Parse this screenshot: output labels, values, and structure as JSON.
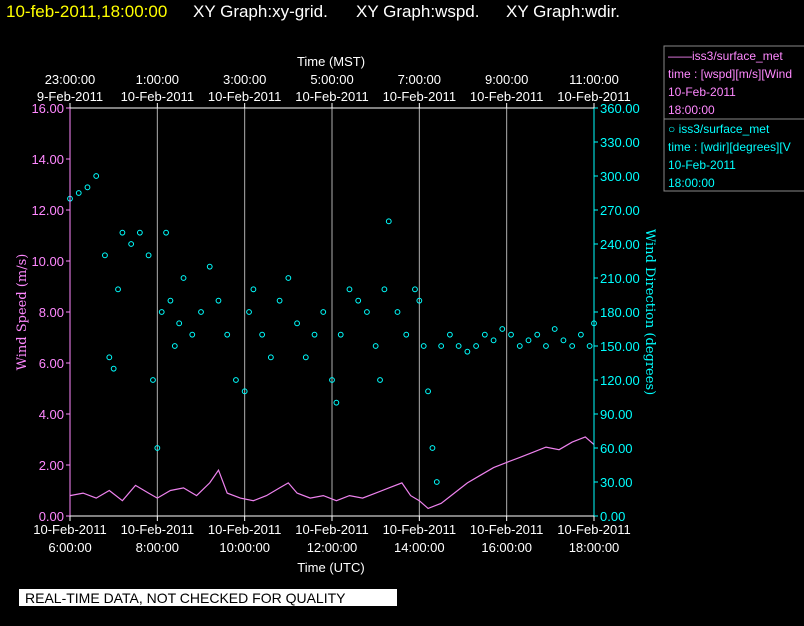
{
  "header": {
    "date_label": "10-feb-2011,18:00:00",
    "titles": [
      "XY Graph:xy-grid.",
      "XY Graph:wspd.",
      "XY Graph:wdir."
    ]
  },
  "footer": {
    "notice": "REAL-TIME DATA, NOT CHECKED FOR QUALITY"
  },
  "legend": [
    {
      "lines": [
        "——iss3/surface_met",
        "time : [wspd][m/s][Wind",
        "10-Feb-2011",
        "18:00:00"
      ],
      "color": "#ff88ff"
    },
    {
      "lines": [
        "○  iss3/surface_met",
        "time : [wdir][degrees][V",
        "10-Feb-2011",
        "18:00:00"
      ],
      "color": "#00ffff"
    }
  ],
  "colors": {
    "wspd": "#ee82ee",
    "wdir": "#00ffff",
    "axis_left": "#ff88ff",
    "axis_right": "#00ffff",
    "grid": "#b0b0b0",
    "background": "#000000"
  },
  "chart_data": {
    "type": "line",
    "title": "",
    "xlabel_bottom": "Time (UTC)",
    "xlabel_top": "Time (MST)",
    "ylabel_left": "Wind Speed (m/s)",
    "ylabel_right": "Wind Direction (degrees)",
    "xlim_utc_hours": [
      6,
      18
    ],
    "x_ticks_bottom": [
      {
        "h": 6,
        "date": "10-Feb-2011",
        "time": "6:00:00"
      },
      {
        "h": 8,
        "date": "10-Feb-2011",
        "time": "8:00:00"
      },
      {
        "h": 10,
        "date": "10-Feb-2011",
        "time": "10:00:00"
      },
      {
        "h": 12,
        "date": "10-Feb-2011",
        "time": "12:00:00"
      },
      {
        "h": 14,
        "date": "10-Feb-2011",
        "time": "14:00:00"
      },
      {
        "h": 16,
        "date": "10-Feb-2011",
        "time": "16:00:00"
      },
      {
        "h": 18,
        "date": "10-Feb-2011",
        "time": "18:00:00"
      }
    ],
    "x_ticks_top": [
      {
        "h": 6,
        "time": "23:00:00",
        "date": "9-Feb-2011"
      },
      {
        "h": 8,
        "time": "1:00:00",
        "date": "10-Feb-2011"
      },
      {
        "h": 10,
        "time": "3:00:00",
        "date": "10-Feb-2011"
      },
      {
        "h": 12,
        "time": "5:00:00",
        "date": "10-Feb-2011"
      },
      {
        "h": 14,
        "time": "7:00:00",
        "date": "10-Feb-2011"
      },
      {
        "h": 16,
        "time": "9:00:00",
        "date": "10-Feb-2011"
      },
      {
        "h": 18,
        "time": "11:00:00",
        "date": "10-Feb-2011"
      }
    ],
    "ylim_left": [
      0,
      16
    ],
    "y_ticks_left": [
      "0.00",
      "2.00",
      "4.00",
      "6.00",
      "8.00",
      "10.00",
      "12.00",
      "14.00",
      "16.00"
    ],
    "ylim_right": [
      0,
      360
    ],
    "y_ticks_right": [
      "0.00",
      "30.00",
      "60.00",
      "90.00",
      "120.00",
      "150.00",
      "180.00",
      "210.00",
      "240.00",
      "270.00",
      "300.00",
      "330.00",
      "360.00"
    ],
    "grid_h": [
      8,
      10,
      12,
      14,
      16
    ],
    "series": [
      {
        "name": "iss3/surface_met wspd",
        "style": "line",
        "axis": "left",
        "points": [
          [
            6.0,
            0.8
          ],
          [
            6.3,
            0.9
          ],
          [
            6.6,
            0.7
          ],
          [
            6.9,
            1.0
          ],
          [
            7.2,
            0.6
          ],
          [
            7.5,
            1.2
          ],
          [
            7.8,
            0.9
          ],
          [
            8.0,
            0.7
          ],
          [
            8.3,
            1.0
          ],
          [
            8.6,
            1.1
          ],
          [
            8.9,
            0.8
          ],
          [
            9.2,
            1.3
          ],
          [
            9.4,
            1.8
          ],
          [
            9.6,
            0.9
          ],
          [
            9.9,
            0.7
          ],
          [
            10.2,
            0.6
          ],
          [
            10.5,
            0.8
          ],
          [
            10.8,
            1.1
          ],
          [
            11.0,
            1.3
          ],
          [
            11.2,
            0.9
          ],
          [
            11.5,
            0.7
          ],
          [
            11.8,
            0.8
          ],
          [
            12.1,
            0.6
          ],
          [
            12.4,
            0.8
          ],
          [
            12.7,
            0.7
          ],
          [
            13.0,
            0.9
          ],
          [
            13.3,
            1.1
          ],
          [
            13.6,
            1.3
          ],
          [
            13.8,
            0.8
          ],
          [
            14.0,
            0.6
          ],
          [
            14.2,
            0.3
          ],
          [
            14.5,
            0.5
          ],
          [
            14.8,
            0.9
          ],
          [
            15.1,
            1.3
          ],
          [
            15.4,
            1.6
          ],
          [
            15.7,
            1.9
          ],
          [
            16.0,
            2.1
          ],
          [
            16.3,
            2.3
          ],
          [
            16.6,
            2.5
          ],
          [
            16.9,
            2.7
          ],
          [
            17.2,
            2.6
          ],
          [
            17.5,
            2.9
          ],
          [
            17.8,
            3.1
          ],
          [
            18.0,
            2.8
          ]
        ]
      },
      {
        "name": "iss3/surface_met wdir",
        "style": "circle",
        "axis": "right",
        "points": [
          [
            6.0,
            280
          ],
          [
            6.2,
            285
          ],
          [
            6.4,
            290
          ],
          [
            6.6,
            300
          ],
          [
            6.8,
            230
          ],
          [
            6.9,
            140
          ],
          [
            7.0,
            130
          ],
          [
            7.1,
            200
          ],
          [
            7.2,
            250
          ],
          [
            7.4,
            240
          ],
          [
            7.6,
            250
          ],
          [
            7.8,
            230
          ],
          [
            7.9,
            120
          ],
          [
            8.0,
            60
          ],
          [
            8.1,
            180
          ],
          [
            8.2,
            250
          ],
          [
            8.3,
            190
          ],
          [
            8.4,
            150
          ],
          [
            8.5,
            170
          ],
          [
            8.6,
            210
          ],
          [
            8.8,
            160
          ],
          [
            9.0,
            180
          ],
          [
            9.2,
            220
          ],
          [
            9.4,
            190
          ],
          [
            9.6,
            160
          ],
          [
            9.8,
            120
          ],
          [
            10.0,
            110
          ],
          [
            10.1,
            180
          ],
          [
            10.2,
            200
          ],
          [
            10.4,
            160
          ],
          [
            10.6,
            140
          ],
          [
            10.8,
            190
          ],
          [
            11.0,
            210
          ],
          [
            11.2,
            170
          ],
          [
            11.4,
            140
          ],
          [
            11.6,
            160
          ],
          [
            11.8,
            180
          ],
          [
            12.0,
            120
          ],
          [
            12.1,
            100
          ],
          [
            12.2,
            160
          ],
          [
            12.4,
            200
          ],
          [
            12.6,
            190
          ],
          [
            12.8,
            180
          ],
          [
            13.0,
            150
          ],
          [
            13.1,
            120
          ],
          [
            13.2,
            200
          ],
          [
            13.3,
            260
          ],
          [
            13.5,
            180
          ],
          [
            13.7,
            160
          ],
          [
            13.9,
            200
          ],
          [
            14.0,
            190
          ],
          [
            14.1,
            150
          ],
          [
            14.2,
            110
          ],
          [
            14.3,
            60
          ],
          [
            14.4,
            30
          ],
          [
            14.5,
            150
          ],
          [
            14.7,
            160
          ],
          [
            14.9,
            150
          ],
          [
            15.1,
            145
          ],
          [
            15.3,
            150
          ],
          [
            15.5,
            160
          ],
          [
            15.7,
            155
          ],
          [
            15.9,
            165
          ],
          [
            16.1,
            160
          ],
          [
            16.3,
            150
          ],
          [
            16.5,
            155
          ],
          [
            16.7,
            160
          ],
          [
            16.9,
            150
          ],
          [
            17.1,
            165
          ],
          [
            17.3,
            155
          ],
          [
            17.5,
            150
          ],
          [
            17.7,
            160
          ],
          [
            17.9,
            150
          ],
          [
            18.0,
            170
          ]
        ]
      }
    ]
  }
}
